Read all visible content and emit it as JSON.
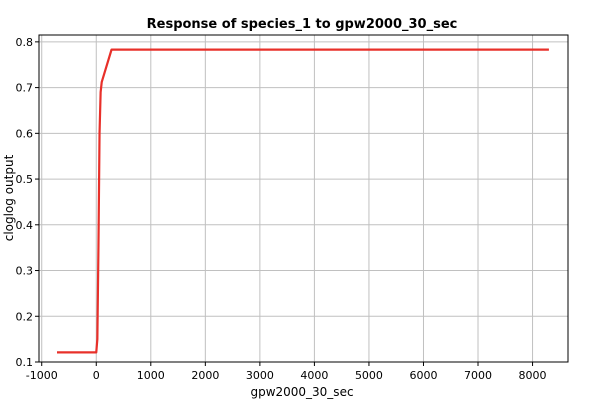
{
  "chart_data": {
    "type": "line",
    "title": "Response of species_1 to gpw2000_30_sec",
    "xlabel": "gpw2000_30_sec",
    "ylabel": "cloglog output",
    "xlim": [
      -1050,
      8650
    ],
    "ylim": [
      0.1,
      0.815
    ],
    "xticks": [
      -1000,
      0,
      1000,
      2000,
      3000,
      4000,
      5000,
      6000,
      7000,
      8000
    ],
    "xtick_labels": [
      "-1000",
      "0",
      "1000",
      "2000",
      "3000",
      "4000",
      "5000",
      "6000",
      "7000",
      "8000"
    ],
    "yticks": [
      0.1,
      0.2,
      0.3,
      0.4,
      0.5,
      0.6,
      0.7,
      0.8
    ],
    "ytick_labels": [
      "0.1",
      "0.2",
      "0.3",
      "0.4",
      "0.5",
      "0.6",
      "0.7",
      "0.8"
    ],
    "grid": true,
    "series": [
      {
        "color": "#e8302a",
        "x": [
          -720,
          0,
          20,
          40,
          60,
          80,
          100,
          280,
          8300
        ],
        "y": [
          0.121,
          0.121,
          0.15,
          0.35,
          0.6,
          0.69,
          0.712,
          0.783,
          0.783
        ]
      }
    ]
  }
}
